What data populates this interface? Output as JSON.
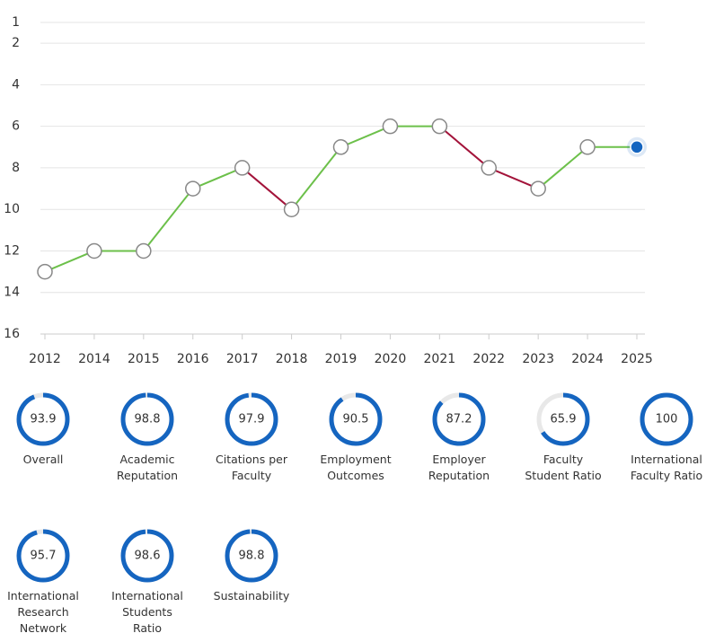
{
  "chart_data": [
    {
      "type": "line",
      "categories": [
        "2012",
        "2014",
        "2015",
        "2016",
        "2017",
        "2018",
        "2019",
        "2020",
        "2021",
        "2022",
        "2023",
        "2024",
        "2025"
      ],
      "values": [
        13,
        12,
        12,
        9,
        8,
        10,
        7,
        6,
        6,
        8,
        9,
        7,
        7
      ],
      "ylim": [
        1,
        16
      ],
      "yticks": [
        1,
        2,
        4,
        6,
        8,
        10,
        12,
        14,
        16
      ],
      "y_inverted": true,
      "grid": true,
      "color": "#6cc04a",
      "worse_color": "#a3133a",
      "last_point_color": "#1565c0"
    },
    {
      "type": "ring",
      "color": "#1565c0",
      "scale_max": 100,
      "categories": [
        "Overall",
        "Academic\nReputation",
        "Citations per\nFaculty",
        "Employment\nOutcomes",
        "Employer\nReputation",
        "Faculty\nStudent Ratio",
        "International\nFaculty Ratio",
        "International\nResearch\nNetwork",
        "International\nStudents\nRatio",
        "Sustainability"
      ],
      "values": [
        93.9,
        98.8,
        97.9,
        90.5,
        87.2,
        65.9,
        100,
        95.7,
        98.6,
        98.8
      ]
    }
  ]
}
